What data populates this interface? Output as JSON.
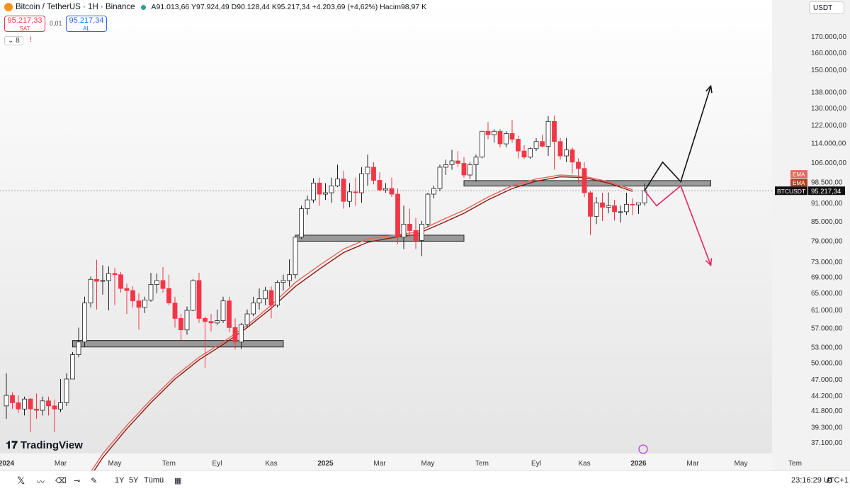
{
  "header": {
    "title": "Bitcoin / TetherUS · 1H · Binance",
    "ohlc": "A91.013,66 Y97.924,49 D90.128,44 K95.217,34 +4.203,69 (+4,62%) Hacim98,97 K"
  },
  "trade": {
    "sell_price": "95.217,33",
    "sell_label": "SAT",
    "spread": "0,01",
    "buy_price": "95.217,34",
    "buy_label": "AL"
  },
  "indicator_count": "8",
  "currency": "USDT",
  "price_labels": {
    "ema1": "EMA",
    "ema2": "EMA",
    "symbol": "BTCUSDT",
    "last": "95.217,34"
  },
  "logo": "TradingView",
  "toolbar": {
    "range_1y": "1Y",
    "range_5y": "5Y",
    "range_all": "Tümü",
    "clock": "23:16:29 UTC+1"
  },
  "colors": {
    "up": "#ffffff",
    "down": "#f23645",
    "ema": "#c0392b",
    "accent": "#2962ff"
  },
  "chart_data": {
    "type": "candlestick",
    "yscale": "log",
    "ylim": [
      35000,
      180000
    ],
    "y_ticks": [
      "170.000,00",
      "160.000,00",
      "150.000,00",
      "138.000,00",
      "130.000,00",
      "122.000,00",
      "114.000,00",
      "106.000,00",
      "98.500,00",
      "91.000,00",
      "85.000,00",
      "79.000,00",
      "73.000,00",
      "69.000,00",
      "65.000,00",
      "61.000,00",
      "57.000,00",
      "53.000,00",
      "50.000,00",
      "47.000,00",
      "44.200,00",
      "41.800,00",
      "39.300,00",
      "37.100,00"
    ],
    "y_tick_values": [
      170000,
      160000,
      150000,
      138000,
      130000,
      122000,
      114000,
      106000,
      98500,
      91000,
      85000,
      79000,
      73000,
      69000,
      65000,
      61000,
      57000,
      53000,
      50000,
      47000,
      44200,
      41800,
      39300,
      37100
    ],
    "x_ticks": [
      "2024",
      "Mar",
      "May",
      "Tem",
      "Eyl",
      "Kas",
      "2025",
      "Mar",
      "May",
      "Tem",
      "Eyl",
      "Kas",
      "2026",
      "Mar",
      "May",
      "Tem"
    ],
    "x_tick_weeks": [
      0,
      9,
      18,
      27,
      35,
      44,
      53,
      62,
      70,
      79,
      88,
      96,
      105,
      114,
      122,
      131
    ],
    "candles": [
      {
        "w": 0,
        "o": 42500,
        "h": 48000,
        "l": 40500,
        "c": 44200
      },
      {
        "w": 1,
        "o": 44200,
        "h": 44700,
        "l": 42000,
        "c": 43000
      },
      {
        "w": 2,
        "o": 43000,
        "h": 44200,
        "l": 41400,
        "c": 42000
      },
      {
        "w": 3,
        "o": 42000,
        "h": 44000,
        "l": 41000,
        "c": 43600
      },
      {
        "w": 4,
        "o": 43600,
        "h": 43800,
        "l": 38500,
        "c": 42000
      },
      {
        "w": 5,
        "o": 42000,
        "h": 44500,
        "l": 40500,
        "c": 41800
      },
      {
        "w": 6,
        "o": 41800,
        "h": 44000,
        "l": 41000,
        "c": 43300
      },
      {
        "w": 7,
        "o": 43300,
        "h": 44000,
        "l": 41000,
        "c": 42500
      },
      {
        "w": 8,
        "o": 42500,
        "h": 43500,
        "l": 38500,
        "c": 42000
      },
      {
        "w": 9,
        "o": 42000,
        "h": 47000,
        "l": 41500,
        "c": 43000
      },
      {
        "w": 10,
        "o": 43000,
        "h": 48000,
        "l": 42500,
        "c": 47000
      },
      {
        "w": 11,
        "o": 47000,
        "h": 52000,
        "l": 47000,
        "c": 51500
      },
      {
        "w": 12,
        "o": 51500,
        "h": 57000,
        "l": 51000,
        "c": 54000
      },
      {
        "w": 13,
        "o": 54000,
        "h": 64000,
        "l": 53000,
        "c": 62500
      },
      {
        "w": 14,
        "o": 62500,
        "h": 69000,
        "l": 61500,
        "c": 68300
      },
      {
        "w": 15,
        "o": 68300,
        "h": 73500,
        "l": 61000,
        "c": 67800
      },
      {
        "w": 16,
        "o": 67800,
        "h": 72000,
        "l": 64500,
        "c": 68000
      },
      {
        "w": 17,
        "o": 68000,
        "h": 71700,
        "l": 60800,
        "c": 69800
      },
      {
        "w": 18,
        "o": 69800,
        "h": 71300,
        "l": 62000,
        "c": 69500
      },
      {
        "w": 19,
        "o": 69500,
        "h": 70200,
        "l": 65000,
        "c": 66000
      },
      {
        "w": 20,
        "o": 66000,
        "h": 67200,
        "l": 60000,
        "c": 65500
      },
      {
        "w": 21,
        "o": 65500,
        "h": 66500,
        "l": 61500,
        "c": 63000
      },
      {
        "w": 22,
        "o": 63000,
        "h": 64800,
        "l": 56600,
        "c": 61500
      },
      {
        "w": 23,
        "o": 61500,
        "h": 64000,
        "l": 60200,
        "c": 63200
      },
      {
        "w": 24,
        "o": 63200,
        "h": 70000,
        "l": 62800,
        "c": 67000
      },
      {
        "w": 25,
        "o": 67000,
        "h": 69800,
        "l": 64800,
        "c": 68000
      },
      {
        "w": 26,
        "o": 68000,
        "h": 71500,
        "l": 65000,
        "c": 66000
      },
      {
        "w": 27,
        "o": 66000,
        "h": 69500,
        "l": 62000,
        "c": 62500
      },
      {
        "w": 28,
        "o": 62500,
        "h": 64000,
        "l": 57000,
        "c": 59000
      },
      {
        "w": 29,
        "o": 59000,
        "h": 60000,
        "l": 54000,
        "c": 56500
      },
      {
        "w": 30,
        "o": 56500,
        "h": 61700,
        "l": 55500,
        "c": 60800
      },
      {
        "w": 31,
        "o": 60800,
        "h": 68400,
        "l": 60600,
        "c": 68000
      },
      {
        "w": 32,
        "o": 68000,
        "h": 70000,
        "l": 58000,
        "c": 59000
      },
      {
        "w": 33,
        "o": 59000,
        "h": 59500,
        "l": 49000,
        "c": 58300
      },
      {
        "w": 34,
        "o": 58300,
        "h": 60000,
        "l": 56200,
        "c": 58000
      },
      {
        "w": 35,
        "o": 58000,
        "h": 61000,
        "l": 57500,
        "c": 58500
      },
      {
        "w": 36,
        "o": 58500,
        "h": 64000,
        "l": 58000,
        "c": 63000
      },
      {
        "w": 37,
        "o": 63000,
        "h": 64000,
        "l": 56000,
        "c": 57000
      },
      {
        "w": 38,
        "o": 57000,
        "h": 59000,
        "l": 52500,
        "c": 54000
      },
      {
        "w": 39,
        "o": 54000,
        "h": 58000,
        "l": 52600,
        "c": 57600
      },
      {
        "w": 40,
        "o": 57600,
        "h": 61000,
        "l": 57000,
        "c": 60000
      },
      {
        "w": 41,
        "o": 60000,
        "h": 64000,
        "l": 59500,
        "c": 62500
      },
      {
        "w": 42,
        "o": 62500,
        "h": 66000,
        "l": 61000,
        "c": 63500
      },
      {
        "w": 43,
        "o": 63500,
        "h": 66400,
        "l": 62000,
        "c": 65500
      },
      {
        "w": 44,
        "o": 65500,
        "h": 66500,
        "l": 59000,
        "c": 62000
      },
      {
        "w": 45,
        "o": 62000,
        "h": 68000,
        "l": 61500,
        "c": 67500
      },
      {
        "w": 46,
        "o": 67500,
        "h": 69500,
        "l": 65500,
        "c": 68000
      },
      {
        "w": 47,
        "o": 68000,
        "h": 73600,
        "l": 66500,
        "c": 69500
      },
      {
        "w": 48,
        "o": 69500,
        "h": 80000,
        "l": 68500,
        "c": 80000
      },
      {
        "w": 49,
        "o": 80000,
        "h": 90000,
        "l": 79500,
        "c": 89000
      },
      {
        "w": 50,
        "o": 89000,
        "h": 93500,
        "l": 87000,
        "c": 92000
      },
      {
        "w": 51,
        "o": 92000,
        "h": 99800,
        "l": 91000,
        "c": 98000
      },
      {
        "w": 52,
        "o": 98000,
        "h": 100000,
        "l": 90000,
        "c": 94000
      },
      {
        "w": 53,
        "o": 94000,
        "h": 98000,
        "l": 92000,
        "c": 94500
      },
      {
        "w": 54,
        "o": 94500,
        "h": 100000,
        "l": 91000,
        "c": 97000
      },
      {
        "w": 55,
        "o": 97000,
        "h": 105000,
        "l": 96500,
        "c": 99500
      },
      {
        "w": 56,
        "o": 99500,
        "h": 102700,
        "l": 89000,
        "c": 91500
      },
      {
        "w": 57,
        "o": 91500,
        "h": 98000,
        "l": 89500,
        "c": 94800
      },
      {
        "w": 58,
        "o": 94800,
        "h": 100000,
        "l": 90000,
        "c": 94500
      },
      {
        "w": 59,
        "o": 94500,
        "h": 104000,
        "l": 91000,
        "c": 101500
      },
      {
        "w": 60,
        "o": 101500,
        "h": 109000,
        "l": 97000,
        "c": 104000
      },
      {
        "w": 61,
        "o": 104000,
        "h": 106000,
        "l": 97500,
        "c": 99000
      },
      {
        "w": 62,
        "o": 99000,
        "h": 102000,
        "l": 95000,
        "c": 95500
      },
      {
        "w": 63,
        "o": 95500,
        "h": 98000,
        "l": 94500,
        "c": 96000
      },
      {
        "w": 64,
        "o": 96000,
        "h": 100000,
        "l": 93000,
        "c": 94000
      },
      {
        "w": 65,
        "o": 94000,
        "h": 96000,
        "l": 78000,
        "c": 80000
      },
      {
        "w": 66,
        "o": 80000,
        "h": 90000,
        "l": 76500,
        "c": 84000
      },
      {
        "w": 67,
        "o": 84000,
        "h": 89000,
        "l": 80000,
        "c": 82000
      },
      {
        "w": 68,
        "o": 82000,
        "h": 86000,
        "l": 76500,
        "c": 79000
      },
      {
        "w": 69,
        "o": 79000,
        "h": 85000,
        "l": 74500,
        "c": 84000
      },
      {
        "w": 70,
        "o": 84000,
        "h": 94500,
        "l": 83000,
        "c": 94000
      },
      {
        "w": 71,
        "o": 94000,
        "h": 97000,
        "l": 92500,
        "c": 96000
      },
      {
        "w": 72,
        "o": 96000,
        "h": 105000,
        "l": 95000,
        "c": 104000
      },
      {
        "w": 73,
        "o": 104000,
        "h": 107000,
        "l": 101000,
        "c": 105000
      },
      {
        "w": 74,
        "o": 105000,
        "h": 111000,
        "l": 103000,
        "c": 106500
      },
      {
        "w": 75,
        "o": 106500,
        "h": 110500,
        "l": 104000,
        "c": 105500
      },
      {
        "w": 76,
        "o": 105500,
        "h": 108000,
        "l": 100000,
        "c": 101000
      },
      {
        "w": 77,
        "o": 101000,
        "h": 106000,
        "l": 99500,
        "c": 105000
      },
      {
        "w": 78,
        "o": 105000,
        "h": 109000,
        "l": 98500,
        "c": 108000
      },
      {
        "w": 79,
        "o": 108000,
        "h": 119000,
        "l": 107500,
        "c": 119000
      },
      {
        "w": 80,
        "o": 119000,
        "h": 123200,
        "l": 115500,
        "c": 117500
      },
      {
        "w": 81,
        "o": 117500,
        "h": 120000,
        "l": 114000,
        "c": 119000
      },
      {
        "w": 82,
        "o": 119000,
        "h": 120000,
        "l": 112000,
        "c": 113500
      },
      {
        "w": 83,
        "o": 113500,
        "h": 119000,
        "l": 112000,
        "c": 118000
      },
      {
        "w": 84,
        "o": 118000,
        "h": 124200,
        "l": 114000,
        "c": 115500
      },
      {
        "w": 85,
        "o": 115500,
        "h": 117000,
        "l": 107500,
        "c": 110500
      },
      {
        "w": 86,
        "o": 110500,
        "h": 113000,
        "l": 107200,
        "c": 108000
      },
      {
        "w": 87,
        "o": 108000,
        "h": 112000,
        "l": 107300,
        "c": 111500
      },
      {
        "w": 88,
        "o": 111500,
        "h": 116000,
        "l": 110500,
        "c": 114500
      },
      {
        "w": 89,
        "o": 114500,
        "h": 117500,
        "l": 112000,
        "c": 112500
      },
      {
        "w": 90,
        "o": 112500,
        "h": 126000,
        "l": 108500,
        "c": 123500
      },
      {
        "w": 91,
        "o": 123500,
        "h": 126200,
        "l": 103000,
        "c": 114500
      },
      {
        "w": 92,
        "o": 114500,
        "h": 116000,
        "l": 107000,
        "c": 108500
      },
      {
        "w": 93,
        "o": 108500,
        "h": 116000,
        "l": 106000,
        "c": 111000
      },
      {
        "w": 94,
        "o": 111000,
        "h": 112000,
        "l": 101500,
        "c": 106000
      },
      {
        "w": 95,
        "o": 106000,
        "h": 107500,
        "l": 98000,
        "c": 103500
      },
      {
        "w": 96,
        "o": 103500,
        "h": 106000,
        "l": 93000,
        "c": 94500
      },
      {
        "w": 97,
        "o": 94500,
        "h": 95000,
        "l": 80600,
        "c": 86500
      },
      {
        "w": 98,
        "o": 86500,
        "h": 93000,
        "l": 84000,
        "c": 91000
      },
      {
        "w": 99,
        "o": 91000,
        "h": 94500,
        "l": 85000,
        "c": 89500
      },
      {
        "w": 100,
        "o": 89500,
        "h": 94600,
        "l": 87500,
        "c": 90000
      },
      {
        "w": 101,
        "o": 90000,
        "h": 92000,
        "l": 85100,
        "c": 88000
      },
      {
        "w": 102,
        "o": 88000,
        "h": 90000,
        "l": 84500,
        "c": 88000
      },
      {
        "w": 103,
        "o": 88000,
        "h": 94500,
        "l": 87000,
        "c": 90500
      },
      {
        "w": 104,
        "o": 90500,
        "h": 92500,
        "l": 86900,
        "c": 90300
      },
      {
        "w": 105,
        "o": 90300,
        "h": 91000,
        "l": 87300,
        "c": 91000
      },
      {
        "w": 106,
        "o": 91000,
        "h": 97900,
        "l": 90100,
        "c": 95217
      }
    ],
    "ema_fast": [
      [
        12,
        31000
      ],
      [
        16,
        35500
      ],
      [
        20,
        39500
      ],
      [
        24,
        43500
      ],
      [
        28,
        47500
      ],
      [
        32,
        51000
      ],
      [
        36,
        54000
      ],
      [
        40,
        57500
      ],
      [
        44,
        62000
      ],
      [
        48,
        67500
      ],
      [
        52,
        72000
      ],
      [
        56,
        76500
      ],
      [
        60,
        79500
      ],
      [
        64,
        80500
      ],
      [
        68,
        81500
      ],
      [
        72,
        85000
      ],
      [
        76,
        88500
      ],
      [
        80,
        93000
      ],
      [
        84,
        97000
      ],
      [
        88,
        99500
      ],
      [
        92,
        101000
      ],
      [
        96,
        100500
      ],
      [
        100,
        98500
      ],
      [
        104,
        95600
      ]
    ],
    "ema_slow": [
      [
        12,
        30500
      ],
      [
        16,
        35000
      ],
      [
        20,
        39000
      ],
      [
        24,
        43000
      ],
      [
        28,
        47000
      ],
      [
        32,
        50500
      ],
      [
        36,
        53500
      ],
      [
        40,
        57000
      ],
      [
        44,
        61300
      ],
      [
        48,
        66500
      ],
      [
        52,
        71000
      ],
      [
        56,
        75500
      ],
      [
        60,
        78500
      ],
      [
        64,
        79800
      ],
      [
        68,
        80800
      ],
      [
        72,
        84000
      ],
      [
        76,
        87500
      ],
      [
        80,
        92000
      ],
      [
        84,
        96000
      ],
      [
        88,
        98700
      ],
      [
        92,
        100300
      ],
      [
        96,
        100000
      ],
      [
        100,
        98000
      ],
      [
        104,
        95000
      ]
    ],
    "zones": [
      {
        "w0": 11,
        "w1": 46,
        "lo": 53000,
        "hi": 54300
      },
      {
        "w0": 48,
        "w1": 76,
        "lo": 78800,
        "hi": 80600
      },
      {
        "w0": 76,
        "w1": 117,
        "lo": 96900,
        "hi": 98900
      }
    ],
    "projection_up": [
      [
        106,
        95217
      ],
      [
        109,
        106000
      ],
      [
        112,
        98500
      ],
      [
        117,
        141000
      ]
    ],
    "projection_down": [
      [
        106,
        95217
      ],
      [
        108,
        90000
      ],
      [
        112,
        97000
      ],
      [
        117,
        72000
      ]
    ]
  }
}
